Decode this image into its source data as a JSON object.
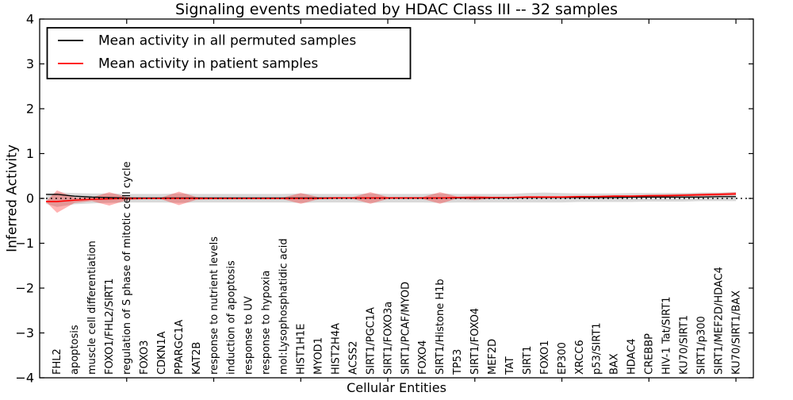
{
  "title": "Signaling events mediated by HDAC Class III -- 32 samples",
  "chart_data": {
    "type": "line",
    "title": "Signaling events mediated by HDAC Class III -- 32 samples",
    "xlabel": "Cellular Entities",
    "ylabel": "Inferred Activity",
    "ylim": [
      -4,
      4
    ],
    "yticks": [
      4,
      3,
      2,
      1,
      0,
      -1,
      -2,
      -3,
      -4
    ],
    "ytick_labels": [
      "4",
      "3",
      "2",
      "1",
      "0",
      "−1",
      "−2",
      "−3",
      "−4"
    ],
    "grid": false,
    "legend_position": "upper left",
    "zero_line": {
      "value": 0,
      "style": "dotted",
      "color": "#000000"
    },
    "categories": [
      "FHL2",
      "apoptosis",
      "muscle cell differentiation",
      "FOXO1/FHL2/SIRT1",
      "regulation of S phase of mitotic cell cycle",
      "FOXO3",
      "CDKN1A",
      "PPARGC1A",
      "KAT2B",
      "response to nutrient levels",
      "induction of apoptosis",
      "response to UV",
      "response to hypoxia",
      "mol:Lysophosphatidic acid",
      "HIST1H1E",
      "MYOD1",
      "HIST2H4A",
      "ACSS2",
      "SIRT1/PGC1A",
      "SIRT1/FOXO3a",
      "SIRT1/PCAF/MYOD",
      "FOXO4",
      "SIRT1/Histone H1b",
      "TP53",
      "SIRT1/FOXO4",
      "MEF2D",
      "TAT",
      "SIRT1",
      "FOXO1",
      "EP300",
      "XRCC6",
      "p53/SIRT1",
      "BAX",
      "HDAC4",
      "CREBBP",
      "HIV-1 Tat/SIRT1",
      "KU70/SIRT1",
      "SIRT1/p300",
      "SIRT1/MEF2D/HDAC4",
      "KU70/SIRT1/BAX"
    ],
    "series": [
      {
        "name": "Mean activity in all permuted samples",
        "color": "#000000",
        "style": "solid",
        "values": [
          0.09,
          0.05,
          0.03,
          0.02,
          0.01,
          0.01,
          0.01,
          0.01,
          0.01,
          0.01,
          0.01,
          0.01,
          0.01,
          0.01,
          0.01,
          0.01,
          0.01,
          0.01,
          0.01,
          0.01,
          0.01,
          0.01,
          0.01,
          0.01,
          0.01,
          0.01,
          0.01,
          0.02,
          0.02,
          0.02,
          0.02,
          0.02,
          0.02,
          0.03,
          0.03,
          0.03,
          0.03,
          0.03,
          0.04,
          0.04
        ]
      },
      {
        "name": "Mean activity in patient samples",
        "color": "#ff0000",
        "style": "solid",
        "values": [
          -0.07,
          -0.04,
          -0.02,
          -0.01,
          0,
          0,
          0,
          0,
          0,
          0,
          0,
          0,
          0,
          0,
          0,
          0,
          0.01,
          0.01,
          0.01,
          0.01,
          0.01,
          0.01,
          0.01,
          0.02,
          0.02,
          0.02,
          0.02,
          0.03,
          0.03,
          0.03,
          0.04,
          0.04,
          0.05,
          0.05,
          0.06,
          0.06,
          0.07,
          0.08,
          0.09,
          0.1
        ]
      }
    ],
    "bands": [
      {
        "name": "permuted-samples-range",
        "color": "#000000",
        "opacity": 0.15,
        "edge_halfwidth": 0.09,
        "upper": [
          0.13,
          0.12,
          0.11,
          0.11,
          0.1,
          0.1,
          0.1,
          0.11,
          0.1,
          0.1,
          0.1,
          0.1,
          0.1,
          0.1,
          0.11,
          0.1,
          0.1,
          0.1,
          0.11,
          0.1,
          0.1,
          0.1,
          0.11,
          0.1,
          0.1,
          0.1,
          0.1,
          0.12,
          0.13,
          0.12,
          0.11,
          0.11,
          0.11,
          0.12,
          0.12,
          0.12,
          0.12,
          0.13,
          0.13,
          0.14
        ],
        "lower": [
          -0.19,
          -0.13,
          -0.11,
          -0.1,
          -0.09,
          -0.09,
          -0.09,
          -0.1,
          -0.09,
          -0.09,
          -0.09,
          -0.09,
          -0.09,
          -0.09,
          -0.1,
          -0.09,
          -0.09,
          -0.09,
          -0.1,
          -0.09,
          -0.09,
          -0.09,
          -0.1,
          -0.09,
          -0.09,
          -0.09,
          -0.09,
          -0.09,
          -0.09,
          -0.09,
          -0.08,
          -0.08,
          -0.08,
          -0.08,
          -0.07,
          -0.07,
          -0.07,
          -0.06,
          -0.06,
          -0.06
        ]
      },
      {
        "name": "patient-samples-range",
        "color": "#ff0000",
        "opacity": 0.3,
        "edge_halfwidth": 0.005,
        "upper": [
          0.18,
          0.02,
          0.02,
          0.14,
          0.03,
          0.02,
          0.02,
          0.15,
          0.03,
          0.02,
          0.02,
          0.02,
          0.02,
          0.02,
          0.12,
          0.03,
          0.03,
          0.03,
          0.14,
          0.03,
          0.03,
          0.03,
          0.14,
          0.04,
          0.06,
          0.04,
          0.04,
          0.05,
          0.05,
          0.05,
          0.06,
          0.06,
          0.07,
          0.07,
          0.08,
          0.09,
          0.1,
          0.11,
          0.12,
          0.14
        ],
        "lower": [
          -0.32,
          -0.1,
          -0.06,
          -0.16,
          -0.04,
          -0.02,
          -0.02,
          -0.15,
          -0.03,
          -0.02,
          -0.02,
          -0.02,
          -0.02,
          -0.02,
          -0.12,
          -0.02,
          -0.01,
          -0.01,
          -0.12,
          -0.01,
          -0.01,
          -0.01,
          -0.12,
          0.0,
          -0.04,
          0.0,
          0.0,
          0.01,
          0.01,
          0.01,
          0.02,
          0.02,
          0.03,
          0.03,
          0.04,
          0.04,
          0.05,
          0.05,
          0.06,
          0.07
        ]
      }
    ]
  }
}
